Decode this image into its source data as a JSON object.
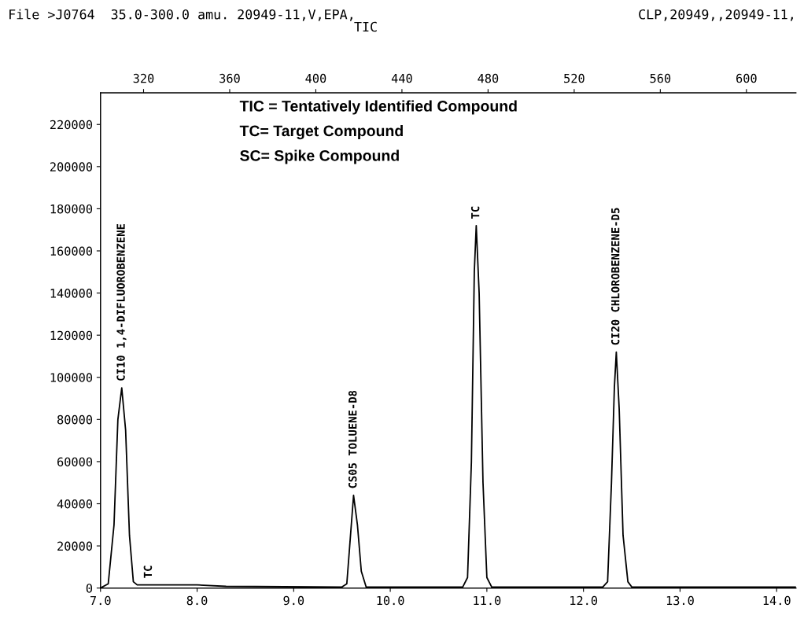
{
  "chart_data": {
    "type": "line",
    "title": "File >J0764  35.0-300.0 amu. 20949-11,V,EPA,",
    "subtitle": "TIC",
    "x": [
      7.0,
      7.08,
      7.14,
      7.18,
      7.22,
      7.26,
      7.3,
      7.34,
      7.38,
      8.0,
      8.3,
      9.5,
      9.55,
      9.58,
      9.62,
      9.66,
      9.7,
      9.75,
      10.75,
      10.8,
      10.84,
      10.87,
      10.89,
      10.92,
      10.96,
      11.0,
      11.05,
      12.2,
      12.25,
      12.29,
      12.32,
      12.34,
      12.37,
      12.41,
      12.46,
      12.5,
      14.2
    ],
    "series": [
      {
        "color": "#000000",
        "values": [
          0,
          2000,
          30000,
          80000,
          95000,
          75000,
          25000,
          3000,
          1500,
          1500,
          800,
          500,
          2000,
          20000,
          44000,
          30000,
          8000,
          500,
          500,
          5000,
          60000,
          150000,
          172000,
          140000,
          50000,
          5000,
          500,
          500,
          3000,
          50000,
          95000,
          112000,
          85000,
          25000,
          3000,
          500,
          500
        ]
      }
    ],
    "xlim": [
      7.0,
      14.2
    ],
    "xticks": [
      {
        "value": 7,
        "label": "7.0"
      },
      {
        "value": 8,
        "label": "8.0"
      },
      {
        "value": 9,
        "label": "9.0"
      },
      {
        "value": 10,
        "label": "10.0"
      },
      {
        "value": 11,
        "label": "11.0"
      },
      {
        "value": 12,
        "label": "12.0"
      },
      {
        "value": 13,
        "label": "13.0"
      },
      {
        "value": 14,
        "label": "14.0"
      }
    ],
    "x2lim": [
      300,
      623
    ],
    "x2ticks": [
      320,
      360,
      400,
      440,
      480,
      520,
      560,
      600
    ],
    "ylim": [
      0,
      235000
    ],
    "yticks": [
      0,
      20000,
      40000,
      60000,
      80000,
      100000,
      120000,
      140000,
      160000,
      180000,
      200000,
      220000
    ],
    "grid": false,
    "legend": false,
    "marker": "none",
    "line_style": "solid",
    "annotations": [
      {
        "text": "CI10 1,4-DIFLUOROBENZENE",
        "x": 7.22,
        "y": 95000
      },
      {
        "text": "TC",
        "x": 7.5,
        "y": 1500
      },
      {
        "text": "CS05 TOLUENE-D8",
        "x": 9.62,
        "y": 44000
      },
      {
        "text": "TC",
        "x": 10.89,
        "y": 172000
      },
      {
        "text": "CI20 CHLOROBENZENE-D5",
        "x": 12.34,
        "y": 112000
      },
      "TIC = Tentatively Identified Compound",
      "TC= Target Compound",
      "SC= Spike Compound",
      "CLP,20949,,20949-11,"
    ]
  }
}
